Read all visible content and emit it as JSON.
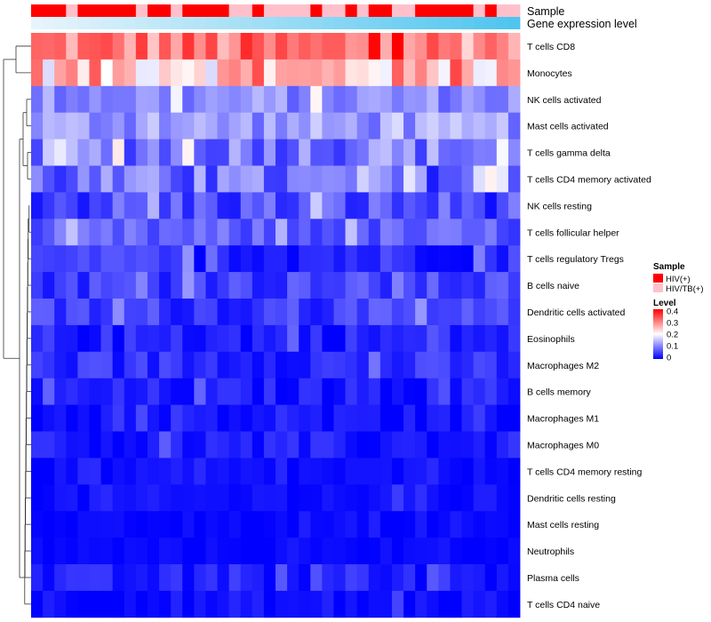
{
  "chart_data": {
    "type": "heatmap",
    "title": "",
    "n_samples": 42,
    "annotations": [
      {
        "name": "Sample"
      },
      {
        "name": "Gene expression level"
      }
    ],
    "sample_groups": {
      "categories": [
        "HIV(+)",
        "HIV/TB(+)"
      ],
      "colors": {
        "HIV(+)": "#ff0000",
        "HIV/TB(+)": "#ffc0cb"
      },
      "sequence": [
        "HIV(+)",
        "HIV(+)",
        "HIV(+)",
        "HIV/TB(+)",
        "HIV(+)",
        "HIV(+)",
        "HIV(+)",
        "HIV(+)",
        "HIV(+)",
        "HIV/TB(+)",
        "HIV(+)",
        "HIV(+)",
        "HIV/TB(+)",
        "HIV(+)",
        "HIV(+)",
        "HIV(+)",
        "HIV(+)",
        "HIV/TB(+)",
        "HIV/TB(+)",
        "HIV(+)",
        "HIV/TB(+)",
        "HIV/TB(+)",
        "HIV/TB(+)",
        "HIV/TB(+)",
        "HIV(+)",
        "HIV/TB(+)",
        "HIV/TB(+)",
        "HIV(+)",
        "HIV/TB(+)",
        "HIV(+)",
        "HIV(+)",
        "HIV/TB(+)",
        "HIV/TB(+)",
        "HIV(+)",
        "HIV(+)",
        "HIV(+)",
        "HIV(+)",
        "HIV(+)",
        "HIV/TB(+)",
        "HIV(+)",
        "HIV/TB(+)",
        "HIV/TB(+)"
      ]
    },
    "expression_gradient": {
      "low": "#e8f4fb",
      "high": "#4ec5ef"
    },
    "level_legend": {
      "title": "Level",
      "ticks": [
        "0.4",
        "0.3",
        "0.2",
        "0.1",
        "0"
      ],
      "range": [
        0,
        0.4
      ]
    },
    "color_scale": {
      "low": "#0000ff",
      "mid": "#ffffff",
      "high": "#ff0000",
      "min": 0,
      "mid_value": 0.2,
      "max": 0.4
    },
    "rows": [
      {
        "label": "T cells CD8",
        "mean": 0.3,
        "spread": 0.07
      },
      {
        "label": "Monocytes",
        "mean": 0.25,
        "spread": 0.08
      },
      {
        "label": "NK cells activated",
        "mean": 0.11,
        "spread": 0.04
      },
      {
        "label": "Mast cells activated",
        "mean": 0.12,
        "spread": 0.045
      },
      {
        "label": "T cells gamma delta",
        "mean": 0.1,
        "spread": 0.06
      },
      {
        "label": "T cells CD4 memory activated",
        "mean": 0.08,
        "spread": 0.06
      },
      {
        "label": "NK cells resting",
        "mean": 0.06,
        "spread": 0.05
      },
      {
        "label": "T cells follicular helper",
        "mean": 0.07,
        "spread": 0.035
      },
      {
        "label": "T cells regulatory  Tregs",
        "mean": 0.035,
        "spread": 0.035
      },
      {
        "label": "B cells naive",
        "mean": 0.05,
        "spread": 0.035
      },
      {
        "label": "Dendritic cells activated",
        "mean": 0.045,
        "spread": 0.035
      },
      {
        "label": "Eosinophils",
        "mean": 0.025,
        "spread": 0.03
      },
      {
        "label": "Macrophages M2",
        "mean": 0.035,
        "spread": 0.03
      },
      {
        "label": "B cells memory",
        "mean": 0.02,
        "spread": 0.025
      },
      {
        "label": "Macrophages M1",
        "mean": 0.012,
        "spread": 0.02
      },
      {
        "label": "Macrophages M0",
        "mean": 0.018,
        "spread": 0.025
      },
      {
        "label": "T cells CD4 memory resting",
        "mean": 0.008,
        "spread": 0.012
      },
      {
        "label": "Dendritic cells resting",
        "mean": 0.01,
        "spread": 0.015
      },
      {
        "label": "Mast cells resting",
        "mean": 0.005,
        "spread": 0.008
      },
      {
        "label": "Neutrophils",
        "mean": 0.005,
        "spread": 0.008
      },
      {
        "label": "Plasma cells",
        "mean": 0.02,
        "spread": 0.025
      },
      {
        "label": "T cells CD4 naive",
        "mean": 0.01,
        "spread": 0.02
      }
    ]
  }
}
